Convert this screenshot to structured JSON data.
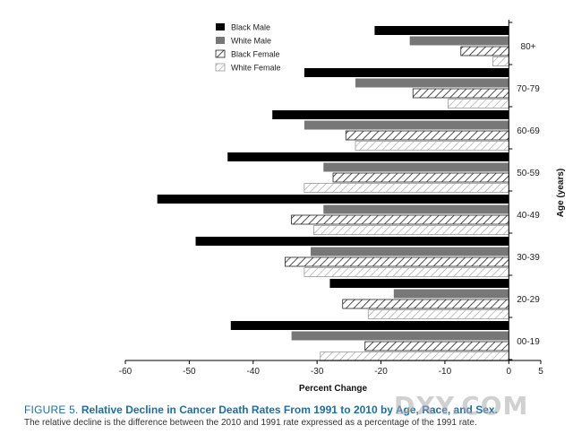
{
  "chart_data": {
    "type": "bar",
    "orientation": "horizontal",
    "categories": [
      "80+",
      "70-79",
      "60-69",
      "50-59",
      "40-49",
      "30-39",
      "20-29",
      "00-19"
    ],
    "series": [
      {
        "name": "Black Male",
        "values": [
          -21,
          -32,
          -37,
          -44,
          -55,
          -49,
          -28,
          -43.5
        ],
        "color": "#000000",
        "pattern": "solid"
      },
      {
        "name": "White Male",
        "values": [
          -15.5,
          -24,
          -32,
          -29,
          -29,
          -31,
          -18,
          -34
        ],
        "color": "#777777",
        "pattern": "solid"
      },
      {
        "name": "Black Female",
        "values": [
          -7.5,
          -15,
          -25.5,
          -27.5,
          -34,
          -35,
          -26,
          -22.5
        ],
        "color": "#333333",
        "pattern": "hatch-dark"
      },
      {
        "name": "White Female",
        "values": [
          -2.5,
          -9.5,
          -24,
          -32,
          -30.5,
          -32,
          -22,
          -29.5
        ],
        "color": "#999999",
        "pattern": "hatch-light"
      }
    ],
    "xlabel": "Percent Change",
    "ylabel": "Age (years)",
    "xlim": [
      -60,
      5
    ],
    "xticks": [
      -60,
      -50,
      -40,
      -30,
      -20,
      -10,
      0,
      5
    ],
    "legend_position": "top-left",
    "grid": false
  },
  "caption": {
    "figure_label": "FIGURE 5.",
    "title": "Relative Decline in Cancer Death Rates From 1991 to 2010 by Age, Race, and Sex.",
    "text": "The relative decline is the difference between the 2010 and 1991 rate expressed as a percentage of the 1991 rate."
  },
  "watermark": "DXY.COM"
}
